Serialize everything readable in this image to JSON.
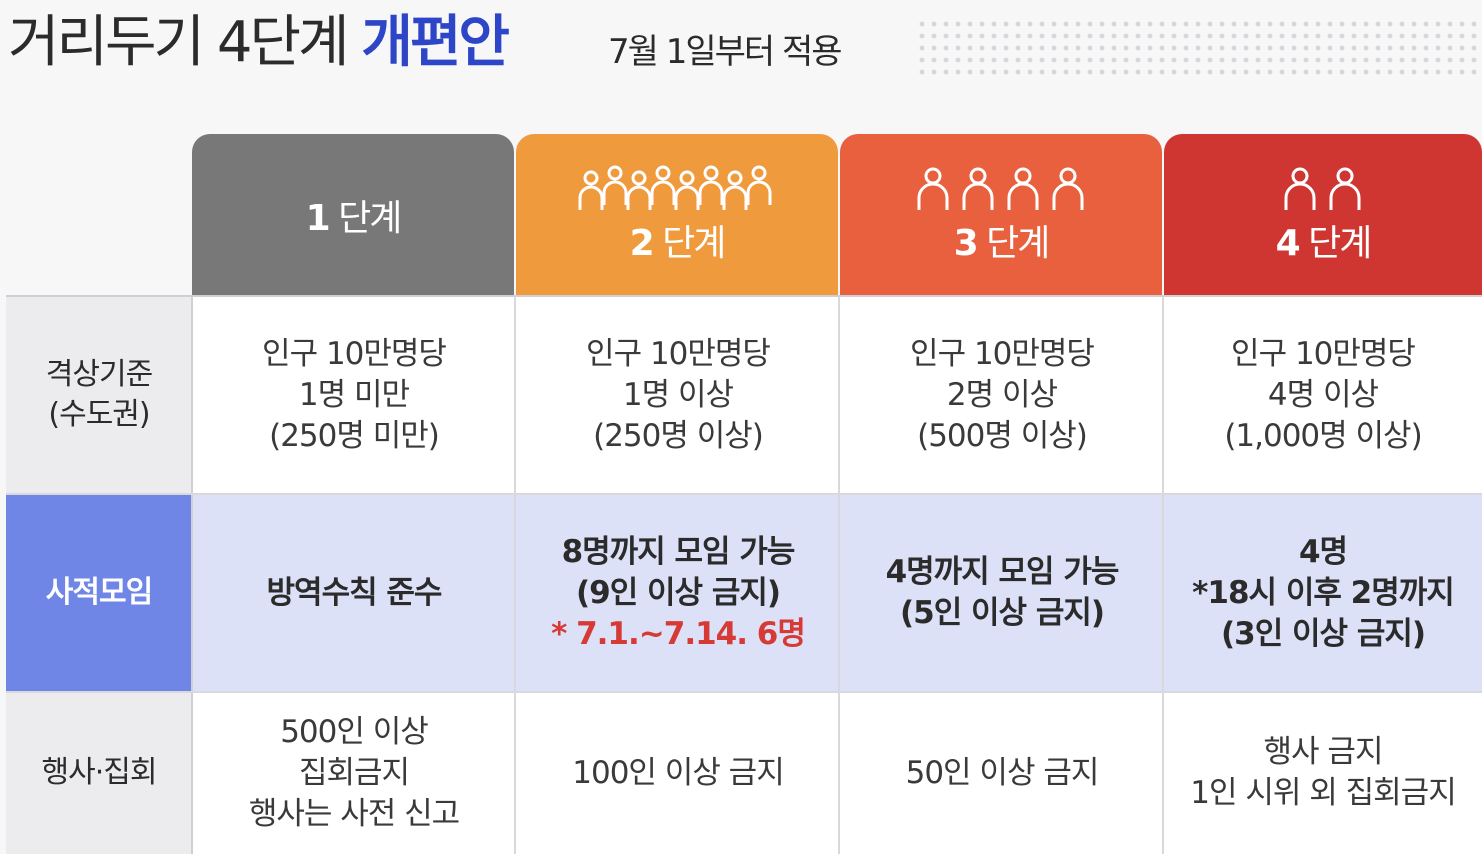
{
  "header": {
    "title_main": "거리두기 4단계",
    "title_highlight": "개편안",
    "subtitle": "7월 1일부터 적용"
  },
  "colors": {
    "level1": "#787878",
    "level2": "#ef9a3d",
    "level3": "#e8603e",
    "level4": "#cf3632",
    "gathering_label": "#6f86e6",
    "gathering_row": "#dde1f8",
    "highlight_title": "#2d46c8",
    "note_red": "#d63a35"
  },
  "levels": [
    {
      "num": "1",
      "label": "단계",
      "icon": "none"
    },
    {
      "num": "2",
      "label": "단계",
      "icon": "people-group-icon"
    },
    {
      "num": "3",
      "label": "단계",
      "icon": "people-group-icon"
    },
    {
      "num": "4",
      "label": "단계",
      "icon": "people-group-icon"
    }
  ],
  "rows": {
    "criteria": {
      "label_1": "격상기준",
      "label_2": "(수도권)",
      "cells": [
        {
          "l1": "인구 10만명당",
          "l2": "1명 미만",
          "l3": "(250명 미만)"
        },
        {
          "l1": "인구 10만명당",
          "l2": "1명 이상",
          "l3": "(250명 이상)"
        },
        {
          "l1": "인구 10만명당",
          "l2": "2명 이상",
          "l3": "(500명 이상)"
        },
        {
          "l1": "인구 10만명당",
          "l2": "4명 이상",
          "l3": "(1,000명 이상)"
        }
      ]
    },
    "gathering": {
      "label": "사적모임",
      "cells": [
        {
          "l1": "방역수칙 준수"
        },
        {
          "l1": "8명까지 모임 가능",
          "l2": "(9인 이상 금지)",
          "note": "* 7.1.~7.14. 6명"
        },
        {
          "l1": "4명까지 모임 가능",
          "l2": "(5인 이상 금지)"
        },
        {
          "l1": "4명",
          "l2": "*18시 이후 2명까지",
          "l3": "(3인 이상 금지)"
        }
      ]
    },
    "events": {
      "label": "행사·집회",
      "cells": [
        {
          "l1": "500인 이상",
          "l2": "집회금지",
          "l3": "행사는 사전 신고"
        },
        {
          "l1": "100인 이상 금지"
        },
        {
          "l1": "50인 이상 금지"
        },
        {
          "l1": "행사 금지",
          "l2": "1인 시위 외 집회금지"
        }
      ]
    }
  }
}
